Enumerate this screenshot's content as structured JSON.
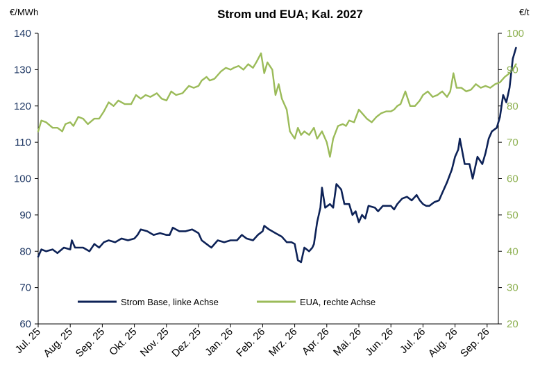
{
  "chart_data": {
    "type": "line",
    "title": "Strom und EUA; Kal. 2027",
    "left_unit": "€/MWh",
    "right_unit": "€/t",
    "left_ylim": [
      60,
      140
    ],
    "right_ylim": [
      20,
      100
    ],
    "left_ticks": [
      "60",
      "70",
      "80",
      "90",
      "100",
      "110",
      "120",
      "130",
      "140"
    ],
    "right_ticks": [
      "20",
      "30",
      "40",
      "50",
      "60",
      "70",
      "80",
      "90",
      "100"
    ],
    "x_ticks": [
      "Jul. 25",
      "Aug. 25",
      "Sep. 25",
      "Okt. 25",
      "Nov. 25",
      "Dez. 25",
      "Jan. 26",
      "Feb. 26",
      "Mrz. 26",
      "Apr. 26",
      "Mai. 26",
      "Jun. 26",
      "Jul. 26",
      "Aug. 26",
      "Sep. 26"
    ],
    "grid": false,
    "legend_position": "bottom-left",
    "colors": {
      "strom": "#0d2257",
      "eua": "#9bbb59",
      "axis": "#000000"
    },
    "series": [
      {
        "name": "Strom Base, linke Achse",
        "axis": "left",
        "points": [
          [
            0,
            78.5
          ],
          [
            0.1,
            80.5
          ],
          [
            0.25,
            80
          ],
          [
            0.45,
            80.5
          ],
          [
            0.6,
            79.5
          ],
          [
            0.8,
            81
          ],
          [
            1.0,
            80.5
          ],
          [
            1.05,
            83
          ],
          [
            1.15,
            81
          ],
          [
            1.4,
            81
          ],
          [
            1.6,
            80
          ],
          [
            1.75,
            82
          ],
          [
            1.9,
            81
          ],
          [
            2.05,
            82.5
          ],
          [
            2.2,
            83
          ],
          [
            2.4,
            82.5
          ],
          [
            2.6,
            83.5
          ],
          [
            2.8,
            83
          ],
          [
            3.0,
            83.5
          ],
          [
            3.1,
            84.5
          ],
          [
            3.2,
            86
          ],
          [
            3.4,
            85.5
          ],
          [
            3.6,
            84.5
          ],
          [
            3.8,
            85
          ],
          [
            4.0,
            84.5
          ],
          [
            4.1,
            84.5
          ],
          [
            4.2,
            86.5
          ],
          [
            4.4,
            85.5
          ],
          [
            4.6,
            85.5
          ],
          [
            4.8,
            86
          ],
          [
            5.0,
            85
          ],
          [
            5.1,
            83
          ],
          [
            5.25,
            82
          ],
          [
            5.4,
            81
          ],
          [
            5.6,
            83
          ],
          [
            5.8,
            82.5
          ],
          [
            6.0,
            83
          ],
          [
            6.2,
            83
          ],
          [
            6.35,
            84.5
          ],
          [
            6.5,
            83.5
          ],
          [
            6.7,
            83
          ],
          [
            6.85,
            84.5
          ],
          [
            7.0,
            85.5
          ],
          [
            7.05,
            87
          ],
          [
            7.2,
            86
          ],
          [
            7.4,
            85
          ],
          [
            7.6,
            84
          ],
          [
            7.75,
            82.5
          ],
          [
            7.9,
            82.5
          ],
          [
            8.0,
            82
          ],
          [
            8.1,
            77.5
          ],
          [
            8.2,
            77
          ],
          [
            8.3,
            81
          ],
          [
            8.45,
            80
          ],
          [
            8.55,
            81
          ],
          [
            8.6,
            82
          ],
          [
            8.7,
            88
          ],
          [
            8.8,
            92
          ],
          [
            8.85,
            97.5
          ],
          [
            8.95,
            92
          ],
          [
            9.1,
            93
          ],
          [
            9.2,
            92
          ],
          [
            9.3,
            98.5
          ],
          [
            9.45,
            97
          ],
          [
            9.55,
            93
          ],
          [
            9.7,
            93
          ],
          [
            9.8,
            90
          ],
          [
            9.9,
            91
          ],
          [
            10.0,
            88
          ],
          [
            10.1,
            90
          ],
          [
            10.2,
            89
          ],
          [
            10.3,
            92.5
          ],
          [
            10.5,
            92
          ],
          [
            10.6,
            91
          ],
          [
            10.75,
            92.5
          ],
          [
            10.9,
            92.5
          ],
          [
            11.0,
            92.5
          ],
          [
            11.1,
            91.5
          ],
          [
            11.2,
            93
          ],
          [
            11.35,
            94.5
          ],
          [
            11.5,
            95
          ],
          [
            11.65,
            94
          ],
          [
            11.8,
            95.5
          ],
          [
            11.9,
            94
          ],
          [
            12.0,
            93
          ],
          [
            12.1,
            92.5
          ],
          [
            12.2,
            92.5
          ],
          [
            12.35,
            93.5
          ],
          [
            12.5,
            94
          ],
          [
            12.6,
            96
          ],
          [
            12.75,
            99
          ],
          [
            12.9,
            102.5
          ],
          [
            13.0,
            106
          ],
          [
            13.1,
            108
          ],
          [
            13.15,
            111
          ],
          [
            13.3,
            104
          ],
          [
            13.45,
            104
          ],
          [
            13.55,
            100
          ],
          [
            13.7,
            106
          ],
          [
            13.85,
            104
          ],
          [
            13.95,
            107
          ],
          [
            14.05,
            111
          ],
          [
            14.15,
            113
          ],
          [
            14.3,
            114
          ],
          [
            14.4,
            117
          ],
          [
            14.5,
            123
          ],
          [
            14.6,
            121
          ],
          [
            14.7,
            125
          ],
          [
            14.8,
            133
          ],
          [
            14.9,
            136
          ]
        ]
      },
      {
        "name": "EUA, rechte Achse",
        "axis": "right",
        "points": [
          [
            0,
            73
          ],
          [
            0.1,
            76
          ],
          [
            0.25,
            75.5
          ],
          [
            0.45,
            74
          ],
          [
            0.6,
            74
          ],
          [
            0.75,
            73
          ],
          [
            0.85,
            75
          ],
          [
            1.0,
            75.5
          ],
          [
            1.1,
            74.5
          ],
          [
            1.25,
            77
          ],
          [
            1.4,
            76.5
          ],
          [
            1.55,
            75
          ],
          [
            1.75,
            76.5
          ],
          [
            1.9,
            76.5
          ],
          [
            2.05,
            78.5
          ],
          [
            2.2,
            81
          ],
          [
            2.35,
            80
          ],
          [
            2.5,
            81.5
          ],
          [
            2.7,
            80.5
          ],
          [
            2.9,
            80.5
          ],
          [
            3.05,
            83
          ],
          [
            3.2,
            82
          ],
          [
            3.35,
            83
          ],
          [
            3.5,
            82.5
          ],
          [
            3.7,
            83.5
          ],
          [
            3.85,
            82
          ],
          [
            4.0,
            81.5
          ],
          [
            4.15,
            84
          ],
          [
            4.3,
            83
          ],
          [
            4.5,
            83.5
          ],
          [
            4.7,
            85.5
          ],
          [
            4.85,
            85
          ],
          [
            5.0,
            85.5
          ],
          [
            5.1,
            87
          ],
          [
            5.25,
            88
          ],
          [
            5.35,
            87
          ],
          [
            5.5,
            87.5
          ],
          [
            5.7,
            89.5
          ],
          [
            5.85,
            90.5
          ],
          [
            6.0,
            90
          ],
          [
            6.1,
            90.5
          ],
          [
            6.25,
            91
          ],
          [
            6.4,
            90
          ],
          [
            6.55,
            91.5
          ],
          [
            6.7,
            90.5
          ],
          [
            6.8,
            92
          ],
          [
            6.95,
            94.5
          ],
          [
            7.05,
            89
          ],
          [
            7.15,
            92
          ],
          [
            7.3,
            90
          ],
          [
            7.4,
            83
          ],
          [
            7.5,
            86
          ],
          [
            7.6,
            82
          ],
          [
            7.75,
            79
          ],
          [
            7.85,
            73
          ],
          [
            8.0,
            71
          ],
          [
            8.1,
            74
          ],
          [
            8.2,
            72
          ],
          [
            8.3,
            73
          ],
          [
            8.45,
            72
          ],
          [
            8.6,
            74
          ],
          [
            8.7,
            71
          ],
          [
            8.85,
            73
          ],
          [
            9.0,
            70
          ],
          [
            9.1,
            66
          ],
          [
            9.2,
            71
          ],
          [
            9.35,
            74.5
          ],
          [
            9.5,
            75
          ],
          [
            9.6,
            74.5
          ],
          [
            9.7,
            76
          ],
          [
            9.85,
            75.5
          ],
          [
            10.0,
            79
          ],
          [
            10.1,
            78
          ],
          [
            10.25,
            76.5
          ],
          [
            10.4,
            75.5
          ],
          [
            10.55,
            77
          ],
          [
            10.7,
            78
          ],
          [
            10.85,
            78.5
          ],
          [
            11.0,
            78.5
          ],
          [
            11.1,
            79
          ],
          [
            11.2,
            80
          ],
          [
            11.3,
            80.5
          ],
          [
            11.45,
            84
          ],
          [
            11.6,
            80
          ],
          [
            11.75,
            80
          ],
          [
            11.9,
            81.5
          ],
          [
            12.0,
            83
          ],
          [
            12.15,
            84
          ],
          [
            12.3,
            82.5
          ],
          [
            12.45,
            83
          ],
          [
            12.6,
            84
          ],
          [
            12.75,
            82.5
          ],
          [
            12.85,
            84
          ],
          [
            12.95,
            89
          ],
          [
            13.05,
            85
          ],
          [
            13.2,
            85
          ],
          [
            13.35,
            84
          ],
          [
            13.5,
            84.5
          ],
          [
            13.65,
            86
          ],
          [
            13.8,
            85
          ],
          [
            13.95,
            85.5
          ],
          [
            14.1,
            85
          ],
          [
            14.25,
            86
          ],
          [
            14.4,
            86.5
          ],
          [
            14.55,
            88
          ],
          [
            14.7,
            89
          ],
          [
            14.8,
            90
          ],
          [
            14.9,
            91.5
          ]
        ]
      }
    ]
  }
}
